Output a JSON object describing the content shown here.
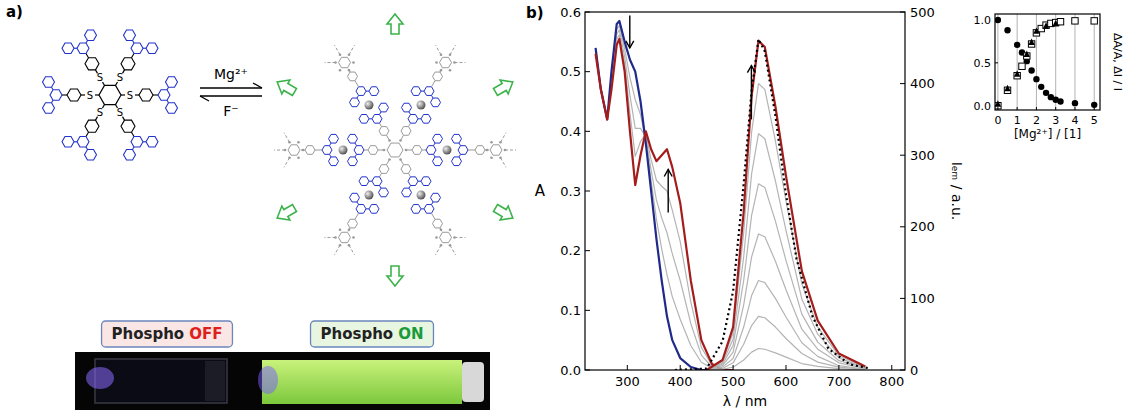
{
  "panel_a": {
    "label": "a)",
    "atom_label": "S",
    "forward_reagent": "Mg²⁺",
    "reverse_reagent": "F⁻",
    "photo_labels": [
      {
        "word": "Phospho",
        "state": "OFF",
        "state_color": "#e0201b"
      },
      {
        "word": "Phospho",
        "state": "ON",
        "state_color": "#1a9a3a"
      }
    ]
  },
  "panel_b_label": "b)",
  "chart_data": [
    {
      "type": "line",
      "x_label": "λ / nm",
      "y_label": "A",
      "y2_label": "Iₑₘ / a.u.",
      "xlim": [
        220,
        825
      ],
      "xticks": [
        300,
        400,
        500,
        600,
        700,
        800
      ],
      "ylim": [
        0,
        0.6
      ],
      "yticks": [
        {
          "value": 0,
          "label": "0.0"
        },
        {
          "value": 0.1,
          "label": "0.1"
        },
        {
          "value": 0.2,
          "label": "0.2"
        },
        {
          "value": 0.3,
          "label": "0.3"
        },
        {
          "value": 0.4,
          "label": "0.4"
        },
        {
          "value": 0.5,
          "label": "0.5"
        },
        {
          "value": 0.6,
          "label": "0.6"
        }
      ],
      "y2lim": [
        0,
        500
      ],
      "y2ticks": [
        0,
        100,
        200,
        300,
        400,
        500
      ],
      "series": [
        {
          "color": "#b4b4b4",
          "line_style": "solid",
          "x": [
            240,
            250,
            262,
            270,
            280,
            285,
            295,
            305,
            315,
            325,
            335,
            345,
            355,
            365,
            375,
            385,
            400,
            420,
            440,
            460,
            480,
            500
          ],
          "values": [
            0.538,
            0.47,
            0.42,
            0.493,
            0.571,
            0.577,
            0.538,
            0.49,
            0.453,
            0.428,
            0.385,
            0.318,
            0.253,
            0.203,
            0.16,
            0.123,
            0.085,
            0.041,
            0.013,
            0.003,
            0,
            0
          ]
        },
        {
          "color": "#b4b4b4",
          "line_style": "solid",
          "x": [
            240,
            250,
            262,
            270,
            280,
            285,
            295,
            305,
            315,
            325,
            335,
            345,
            355,
            365,
            375,
            385,
            400,
            420,
            440,
            460,
            480,
            500
          ],
          "values": [
            0.535,
            0.47,
            0.42,
            0.485,
            0.563,
            0.57,
            0.525,
            0.46,
            0.405,
            0.405,
            0.39,
            0.335,
            0.285,
            0.255,
            0.23,
            0.195,
            0.15,
            0.078,
            0.025,
            0.005,
            0,
            0
          ]
        },
        {
          "color": "#b4b4b4",
          "line_style": "solid",
          "x": [
            240,
            250,
            262,
            270,
            280,
            285,
            295,
            305,
            315,
            325,
            335,
            345,
            355,
            365,
            375,
            385,
            400,
            420,
            440,
            460,
            480,
            500
          ],
          "values": [
            0.533,
            0.47,
            0.42,
            0.478,
            0.554,
            0.562,
            0.513,
            0.43,
            0.358,
            0.383,
            0.395,
            0.353,
            0.318,
            0.308,
            0.3,
            0.268,
            0.215,
            0.114,
            0.038,
            0.008,
            0,
            0
          ]
        },
        {
          "color": "#1f2a8a",
          "line_style": "solid",
          "x": [
            240,
            250,
            262,
            270,
            280,
            285,
            295,
            305,
            315,
            325,
            335,
            345,
            355,
            365,
            375,
            385,
            400,
            420,
            440,
            460,
            480,
            500
          ],
          "values": [
            0.54,
            0.47,
            0.42,
            0.5,
            0.58,
            0.585,
            0.55,
            0.52,
            0.5,
            0.45,
            0.38,
            0.3,
            0.22,
            0.15,
            0.09,
            0.05,
            0.02,
            0.005,
            0,
            0,
            0,
            0
          ]
        },
        {
          "color": "#a51c1c",
          "line_style": "solid",
          "x": [
            240,
            250,
            262,
            270,
            280,
            285,
            295,
            305,
            315,
            325,
            335,
            345,
            355,
            365,
            375,
            385,
            400,
            420,
            440,
            460,
            480,
            500
          ],
          "values": [
            0.53,
            0.47,
            0.42,
            0.47,
            0.545,
            0.555,
            0.5,
            0.4,
            0.31,
            0.36,
            0.4,
            0.37,
            0.35,
            0.36,
            0.37,
            0.34,
            0.28,
            0.15,
            0.05,
            0.01,
            0,
            0
          ]
        },
        {
          "color": "#b4b4b4",
          "line_style": "solid",
          "axis": "y2",
          "x": [
            450,
            480,
            500,
            520,
            535,
            548,
            560,
            580,
            600,
            630,
            660,
            700,
            750
          ],
          "values": [
            0,
            1,
            4,
            14,
            25,
            30,
            29,
            24,
            18,
            9,
            5,
            2,
            0
          ]
        },
        {
          "color": "#b4b4b4",
          "line_style": "solid",
          "axis": "y2",
          "x": [
            450,
            480,
            500,
            520,
            535,
            548,
            560,
            580,
            600,
            630,
            660,
            700,
            750
          ],
          "values": [
            0,
            2,
            10,
            36,
            62,
            75,
            73,
            60,
            44,
            23,
            11,
            4,
            1
          ]
        },
        {
          "color": "#b4b4b4",
          "line_style": "solid",
          "axis": "y2",
          "x": [
            450,
            480,
            500,
            520,
            535,
            548,
            560,
            580,
            600,
            630,
            660,
            700,
            750
          ],
          "values": [
            0,
            4,
            16,
            60,
            104,
            125,
            122,
            100,
            74,
            38,
            19,
            6,
            1
          ]
        },
        {
          "color": "#b4b4b4",
          "line_style": "solid",
          "axis": "y2",
          "x": [
            450,
            480,
            500,
            520,
            535,
            548,
            560,
            580,
            600,
            630,
            660,
            700,
            750
          ],
          "values": [
            0,
            6,
            25,
            91,
            158,
            190,
            186,
            152,
            112,
            57,
            29,
            10,
            2
          ]
        },
        {
          "color": "#b4b4b4",
          "line_style": "solid",
          "axis": "y2",
          "x": [
            450,
            480,
            500,
            520,
            535,
            548,
            560,
            580,
            600,
            630,
            660,
            700,
            750
          ],
          "values": [
            0,
            8,
            34,
            125,
            216,
            260,
            255,
            208,
            153,
            78,
            39,
            13,
            3
          ]
        },
        {
          "color": "#b4b4b4",
          "line_style": "solid",
          "axis": "y2",
          "x": [
            450,
            480,
            500,
            520,
            535,
            548,
            560,
            580,
            600,
            630,
            660,
            700,
            750
          ],
          "values": [
            0,
            10,
            43,
            158,
            274,
            330,
            323,
            264,
            195,
            99,
            50,
            17,
            3
          ]
        },
        {
          "color": "#b4b4b4",
          "line_style": "solid",
          "axis": "y2",
          "x": [
            450,
            480,
            500,
            520,
            535,
            548,
            560,
            580,
            600,
            630,
            660,
            700,
            750
          ],
          "values": [
            0,
            12,
            52,
            192,
            332,
            400,
            392,
            320,
            236,
            120,
            60,
            20,
            4
          ]
        },
        {
          "color": "#a51c1c",
          "line_style": "solid",
          "axis": "y2",
          "x": [
            450,
            480,
            500,
            520,
            535,
            548,
            560,
            580,
            600,
            630,
            660,
            700,
            750
          ],
          "values": [
            0,
            14,
            60,
            221,
            382,
            460,
            451,
            368,
            271,
            138,
            69,
            23,
            5
          ]
        },
        {
          "color": "#000000",
          "line_style": "dotted",
          "axis": "y2",
          "x": [
            390,
            450,
            480,
            500,
            520,
            535,
            548,
            560,
            580,
            600,
            620,
            650,
            680,
            720,
            760
          ],
          "values": [
            0,
            2,
            40,
            110,
            260,
            390,
            462,
            445,
            355,
            245,
            155,
            75,
            30,
            8,
            2
          ]
        }
      ]
    },
    {
      "type": "scatter",
      "x_label": "[Mg²⁺] / [1]",
      "y_label": "ΔA/A, ΔI / I",
      "xlim": [
        -0.15,
        5.3
      ],
      "xticks": [
        0,
        1,
        2,
        3,
        4,
        5
      ],
      "ylim": [
        -0.05,
        1.07
      ],
      "yticks": [
        {
          "value": 0,
          "label": "0.0"
        },
        {
          "value": 0.5,
          "label": "0.5"
        },
        {
          "value": 1,
          "label": "1.0"
        }
      ],
      "grid": true,
      "series": [
        {
          "marker": "circle",
          "color": "#000000",
          "x": [
            0,
            0.5,
            1,
            1.25,
            1.5,
            1.75,
            2,
            2.25,
            2.5,
            2.75,
            3,
            3.25,
            4,
            5
          ],
          "values": [
            1,
            0.88,
            0.71,
            0.62,
            0.52,
            0.41,
            0.31,
            0.22,
            0.15,
            0.1,
            0.07,
            0.05,
            0.03,
            0.01
          ]
        },
        {
          "marker": "open-square",
          "color": "#000000",
          "x": [
            0,
            0.5,
            1,
            1.25,
            1.5,
            1.75,
            2,
            2.25,
            2.5,
            2.75,
            3,
            3.25,
            4,
            5
          ],
          "values": [
            0,
            0.18,
            0.35,
            0.46,
            0.58,
            0.72,
            0.85,
            0.9,
            0.94,
            0.96,
            0.97,
            0.98,
            0.99,
            0.99
          ]
        },
        {
          "marker": "triangle",
          "color": "#000000",
          "x": [
            0,
            0.5,
            1,
            1.5,
            1.75,
            2,
            2.5,
            3
          ],
          "values": [
            0.02,
            0.2,
            0.37,
            0.6,
            0.74,
            0.87,
            0.93,
            0.96
          ]
        }
      ]
    }
  ]
}
